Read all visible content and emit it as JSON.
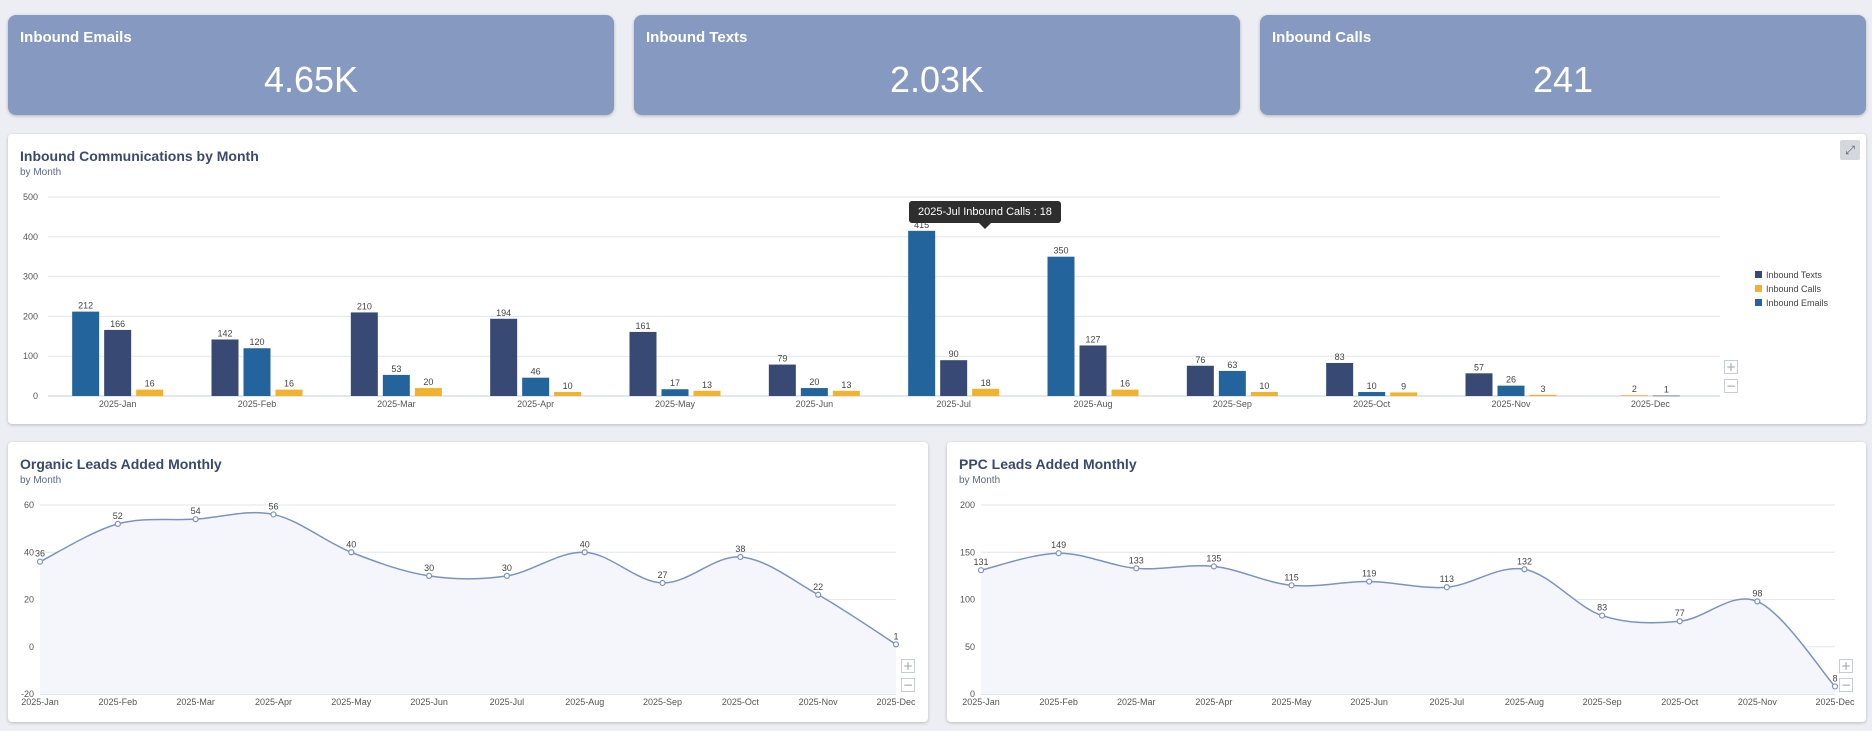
{
  "kpis": [
    {
      "title": "Inbound Emails",
      "value": "4.65K"
    },
    {
      "title": "Inbound Texts",
      "value": "2.03K"
    },
    {
      "title": "Inbound Calls",
      "value": "241"
    }
  ],
  "comms_card": {
    "title": "Inbound Communications by Month",
    "subtitle": "by Month",
    "tooltip": "2025-Jul Inbound Calls : 18"
  },
  "organic_card": {
    "title": "Organic Leads Added Monthly",
    "subtitle": "by Month"
  },
  "ppc_card": {
    "title": "PPC Leads Added Monthly",
    "subtitle": "by Month"
  },
  "icons": {
    "expand": "expand-icon",
    "zoom_in": "plus-icon",
    "zoom_out": "minus-icon"
  },
  "chart_data": [
    {
      "type": "bar",
      "title": "Inbound Communications by Month",
      "subtitle": "by Month",
      "categories": [
        "2025-Jan",
        "2025-Feb",
        "2025-Mar",
        "2025-Apr",
        "2025-May",
        "2025-Jun",
        "2025-Jul",
        "2025-Aug",
        "2025-Sep",
        "2025-Oct",
        "2025-Nov",
        "2025-Dec"
      ],
      "ylim": [
        0,
        500
      ],
      "yticks": [
        0,
        100,
        200,
        300,
        400,
        500
      ],
      "grid": true,
      "legend": "right",
      "series": [
        {
          "name": "Inbound Emails",
          "color": "#24649d",
          "values": [
            212,
            120,
            53,
            46,
            17,
            20,
            415,
            350,
            63,
            10,
            26,
            null
          ]
        },
        {
          "name": "Inbound Texts",
          "color": "#384a73",
          "values": [
            166,
            142,
            210,
            194,
            161,
            79,
            90,
            127,
            76,
            83,
            57,
            1
          ]
        },
        {
          "name": "Inbound Calls",
          "color": "#f1b32e",
          "values": [
            16,
            16,
            20,
            10,
            13,
            13,
            18,
            16,
            10,
            9,
            3,
            2
          ]
        }
      ],
      "bar_order": [
        [
          "Inbound Emails",
          "Inbound Texts",
          "Inbound Calls"
        ],
        [
          "Inbound Texts",
          "Inbound Emails",
          "Inbound Calls"
        ],
        [
          "Inbound Texts",
          "Inbound Emails",
          "Inbound Calls"
        ],
        [
          "Inbound Texts",
          "Inbound Emails",
          "Inbound Calls"
        ],
        [
          "Inbound Texts",
          "Inbound Emails",
          "Inbound Calls"
        ],
        [
          "Inbound Texts",
          "Inbound Emails",
          "Inbound Calls"
        ],
        [
          "Inbound Emails",
          "Inbound Texts",
          "Inbound Calls"
        ],
        [
          "Inbound Emails",
          "Inbound Texts",
          "Inbound Calls"
        ],
        [
          "Inbound Texts",
          "Inbound Emails",
          "Inbound Calls"
        ],
        [
          "Inbound Texts",
          "Inbound Emails",
          "Inbound Calls"
        ],
        [
          "Inbound Texts",
          "Inbound Emails",
          "Inbound Calls"
        ],
        [
          "Inbound Calls",
          "Inbound Texts"
        ]
      ],
      "legend_order": [
        "Inbound Texts",
        "Inbound Calls",
        "Inbound Emails"
      ]
    },
    {
      "type": "area",
      "title": "Organic Leads Added Monthly",
      "subtitle": "by Month",
      "categories": [
        "2025-Jan",
        "2025-Feb",
        "2025-Mar",
        "2025-Apr",
        "2025-May",
        "2025-Jun",
        "2025-Jul",
        "2025-Aug",
        "2025-Sep",
        "2025-Oct",
        "2025-Nov",
        "2025-Dec"
      ],
      "values": [
        36,
        52,
        54,
        56,
        40,
        30,
        30,
        40,
        27,
        38,
        22,
        1
      ],
      "ylim": [
        -20,
        60
      ],
      "yticks": [
        -20,
        0,
        20,
        40,
        60
      ],
      "grid": true,
      "color": "#7b93be"
    },
    {
      "type": "area",
      "title": "PPC Leads Added Monthly",
      "subtitle": "by Month",
      "categories": [
        "2025-Jan",
        "2025-Feb",
        "2025-Mar",
        "2025-Apr",
        "2025-May",
        "2025-Jun",
        "2025-Jul",
        "2025-Aug",
        "2025-Sep",
        "2025-Oct",
        "2025-Nov",
        "2025-Dec"
      ],
      "values": [
        131,
        149,
        133,
        135,
        115,
        119,
        113,
        132,
        83,
        77,
        98,
        8
      ],
      "ylim": [
        0,
        200
      ],
      "yticks": [
        0,
        50,
        100,
        150,
        200
      ],
      "grid": true,
      "color": "#7b93be"
    }
  ]
}
